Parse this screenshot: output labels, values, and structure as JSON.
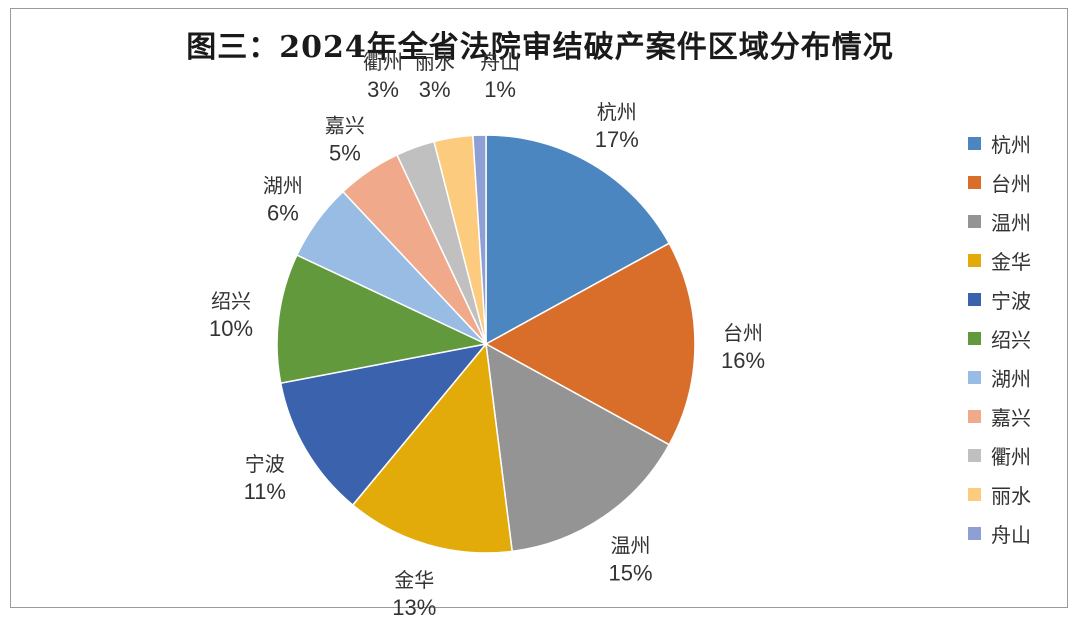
{
  "chart_data": {
    "type": "pie",
    "title": "图三：2024年全省法院审结破产案件区域分布情况",
    "legend_position": "right",
    "slices": [
      {
        "name": "杭州",
        "value": 17,
        "label": "17%",
        "color": "#4b86c0"
      },
      {
        "name": "台州",
        "value": 16,
        "label": "16%",
        "color": "#d86e2a"
      },
      {
        "name": "温州",
        "value": 15,
        "label": "15%",
        "color": "#949494"
      },
      {
        "name": "金华",
        "value": 13,
        "label": "13%",
        "color": "#e3ab0a"
      },
      {
        "name": "宁波",
        "value": 11,
        "label": "11%",
        "color": "#3a62ad"
      },
      {
        "name": "绍兴",
        "value": 10,
        "label": "10%",
        "color": "#62993c"
      },
      {
        "name": "湖州",
        "value": 6,
        "label": "6%",
        "color": "#98bce4"
      },
      {
        "name": "嘉兴",
        "value": 5,
        "label": "5%",
        "color": "#f0a98a"
      },
      {
        "name": "衢州",
        "value": 3,
        "label": "3%",
        "color": "#c0c0c0"
      },
      {
        "name": "丽水",
        "value": 3,
        "label": "3%",
        "color": "#fccb7d"
      },
      {
        "name": "舟山",
        "value": 1,
        "label": "1%",
        "color": "#8e9fd5"
      }
    ]
  }
}
